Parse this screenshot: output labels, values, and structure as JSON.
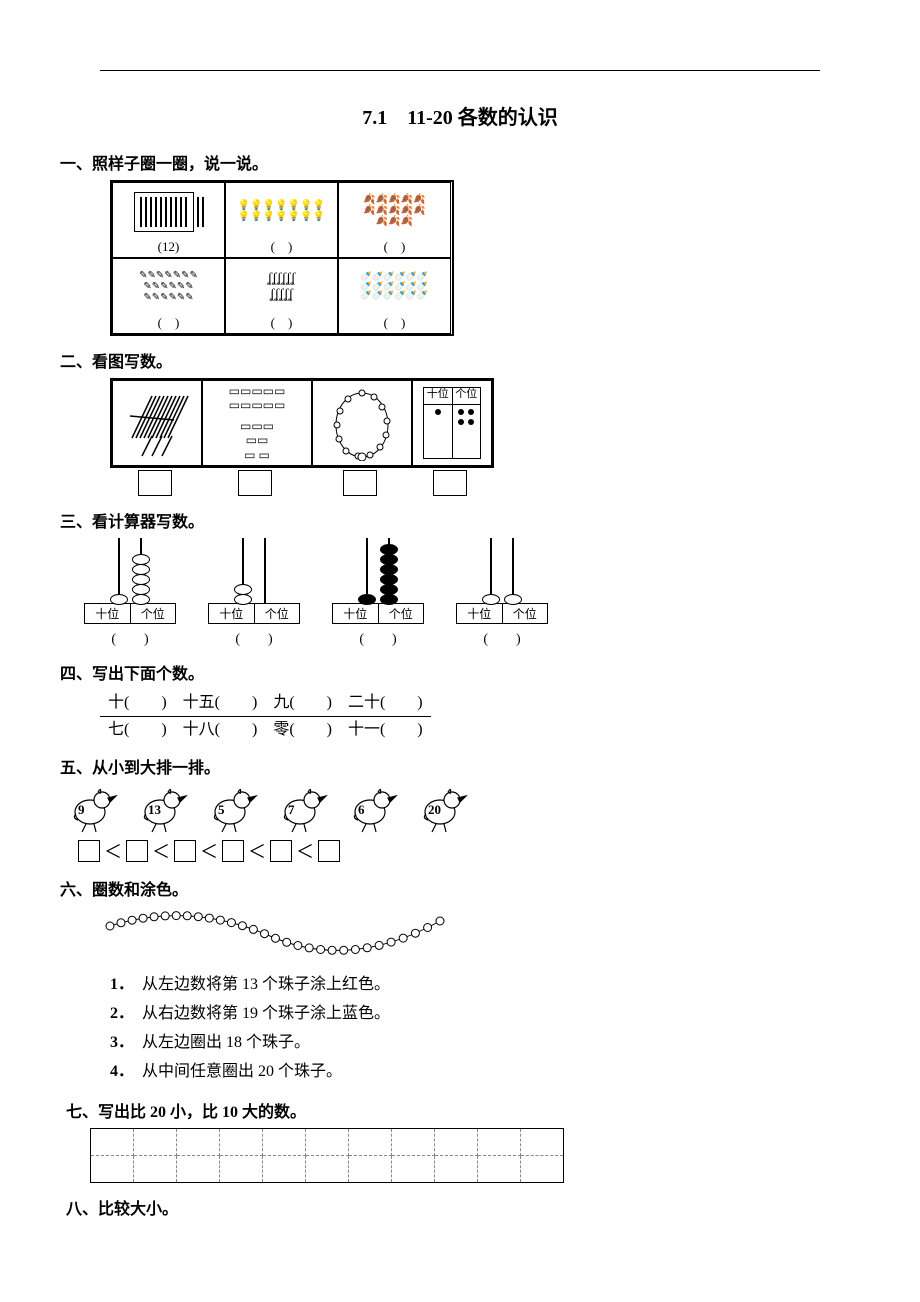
{
  "title": "7.1　11-20 各数的认识",
  "sections": {
    "s1": {
      "title": "一、照样子圈一圈，说一说。",
      "cells": [
        {
          "label": "(12)"
        },
        {
          "label": "(　)"
        },
        {
          "label": "(　)"
        },
        {
          "label": "(　)"
        },
        {
          "label": "(　)"
        },
        {
          "label": "(　)"
        }
      ]
    },
    "s2": {
      "title": "二、看图写数。",
      "pv": {
        "head_tens": "十位",
        "head_ones": "个位",
        "tens_dots": 1,
        "ones_dots": 4
      }
    },
    "s3": {
      "title": "三、看计算器写数。",
      "label_tens": "十位",
      "label_ones": "个位",
      "abaci": [
        {
          "tens": 1,
          "ones": 5,
          "filled": false
        },
        {
          "tens": 2,
          "ones": 0,
          "filled": false
        },
        {
          "tens": 1,
          "ones": 6,
          "filled": true
        },
        {
          "tens": 1,
          "ones": 1,
          "filled": false
        }
      ],
      "ans": "(　　)"
    },
    "s4": {
      "title": "四、写出下面个数。",
      "row1": [
        {
          "w": "十",
          "b": "(　　)"
        },
        {
          "w": "十五",
          "b": "(　　)"
        },
        {
          "w": "九",
          "b": "(　　)"
        },
        {
          "w": "二十",
          "b": "(　　)"
        }
      ],
      "row2": [
        {
          "w": "七",
          "b": "(　　)"
        },
        {
          "w": "十八",
          "b": "(　　)"
        },
        {
          "w": "零",
          "b": "(　　)"
        },
        {
          "w": "十一",
          "b": "(　　)"
        }
      ]
    },
    "s5": {
      "title": "五、从小到大排一排。",
      "nums": [
        "9",
        "13",
        "5",
        "7",
        "6",
        "20"
      ],
      "lt": "＜"
    },
    "s6": {
      "title": "六、圈数和涂色。",
      "items": [
        {
          "n": "1．",
          "t": "从左边数将第 13 个珠子涂上红色。"
        },
        {
          "n": "2．",
          "t": "从右边数将第 19 个珠子涂上蓝色。"
        },
        {
          "n": "3．",
          "t": "从左边圈出 18 个珠子。"
        },
        {
          "n": "4．",
          "t": "从中间任意圈出 20 个珠子。"
        }
      ]
    },
    "s7": {
      "title": "七、写出比 20 小，比 10 大的数。",
      "cols": 11,
      "rows": 2
    },
    "s8": {
      "title": "八、比较大小。"
    }
  },
  "colors": {
    "line": "#000000",
    "bg": "#ffffff",
    "dash": "#888888"
  }
}
